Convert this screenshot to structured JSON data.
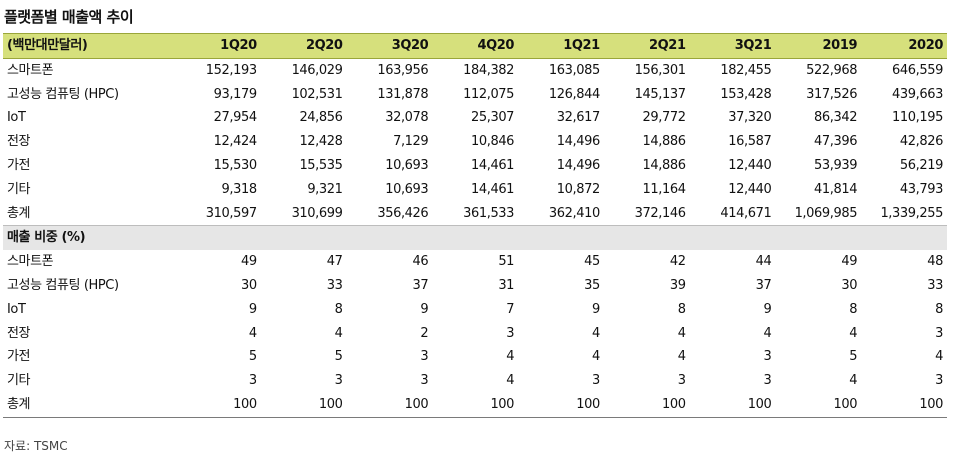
{
  "title": "플랫폼별 매출액 추이",
  "header": {
    "label": "(백만대만달러)",
    "columns": [
      "1Q20",
      "2Q20",
      "3Q20",
      "4Q20",
      "1Q21",
      "2Q21",
      "3Q21",
      "2019",
      "2020"
    ]
  },
  "revenue_rows": [
    {
      "label": "스마트폰",
      "values": [
        "152,193",
        "146,029",
        "163,956",
        "184,382",
        "163,085",
        "156,301",
        "182,455",
        "522,968",
        "646,559"
      ]
    },
    {
      "label": "고성능 컴퓨팅 (HPC)",
      "values": [
        "93,179",
        "102,531",
        "131,878",
        "112,075",
        "126,844",
        "145,137",
        "153,428",
        "317,526",
        "439,663"
      ]
    },
    {
      "label": "IoT",
      "values": [
        "27,954",
        "24,856",
        "32,078",
        "25,307",
        "32,617",
        "29,772",
        "37,320",
        "86,342",
        "110,195"
      ]
    },
    {
      "label": "전장",
      "values": [
        "12,424",
        "12,428",
        "7,129",
        "10,846",
        "14,496",
        "14,886",
        "16,587",
        "47,396",
        "42,826"
      ]
    },
    {
      "label": "가전",
      "values": [
        "15,530",
        "15,535",
        "10,693",
        "14,461",
        "14,496",
        "14,886",
        "12,440",
        "53,939",
        "56,219"
      ]
    },
    {
      "label": "기타",
      "values": [
        "9,318",
        "9,321",
        "10,693",
        "14,461",
        "10,872",
        "11,164",
        "12,440",
        "41,814",
        "43,793"
      ]
    },
    {
      "label": "총계",
      "values": [
        "310,597",
        "310,699",
        "356,426",
        "361,533",
        "362,410",
        "372,146",
        "414,671",
        "1,069,985",
        "1,339,255"
      ]
    }
  ],
  "share_section_label": "매출 비중 (%)",
  "share_rows": [
    {
      "label": "스마트폰",
      "values": [
        "49",
        "47",
        "46",
        "51",
        "45",
        "42",
        "44",
        "49",
        "48"
      ]
    },
    {
      "label": "고성능 컴퓨팅 (HPC)",
      "values": [
        "30",
        "33",
        "37",
        "31",
        "35",
        "39",
        "37",
        "30",
        "33"
      ]
    },
    {
      "label": "IoT",
      "values": [
        "9",
        "8",
        "9",
        "7",
        "9",
        "8",
        "9",
        "8",
        "8"
      ]
    },
    {
      "label": "전장",
      "values": [
        "4",
        "4",
        "2",
        "3",
        "4",
        "4",
        "4",
        "4",
        "3"
      ]
    },
    {
      "label": "가전",
      "values": [
        "5",
        "5",
        "3",
        "4",
        "4",
        "4",
        "3",
        "5",
        "4"
      ]
    },
    {
      "label": "기타",
      "values": [
        "3",
        "3",
        "3",
        "4",
        "3",
        "3",
        "3",
        "4",
        "3"
      ]
    },
    {
      "label": "총계",
      "values": [
        "100",
        "100",
        "100",
        "100",
        "100",
        "100",
        "100",
        "100",
        "100"
      ]
    }
  ],
  "source": "자료: TSMC",
  "colors": {
    "header_bg": "#d6e07c",
    "section_bg": "#e6e6e6"
  }
}
